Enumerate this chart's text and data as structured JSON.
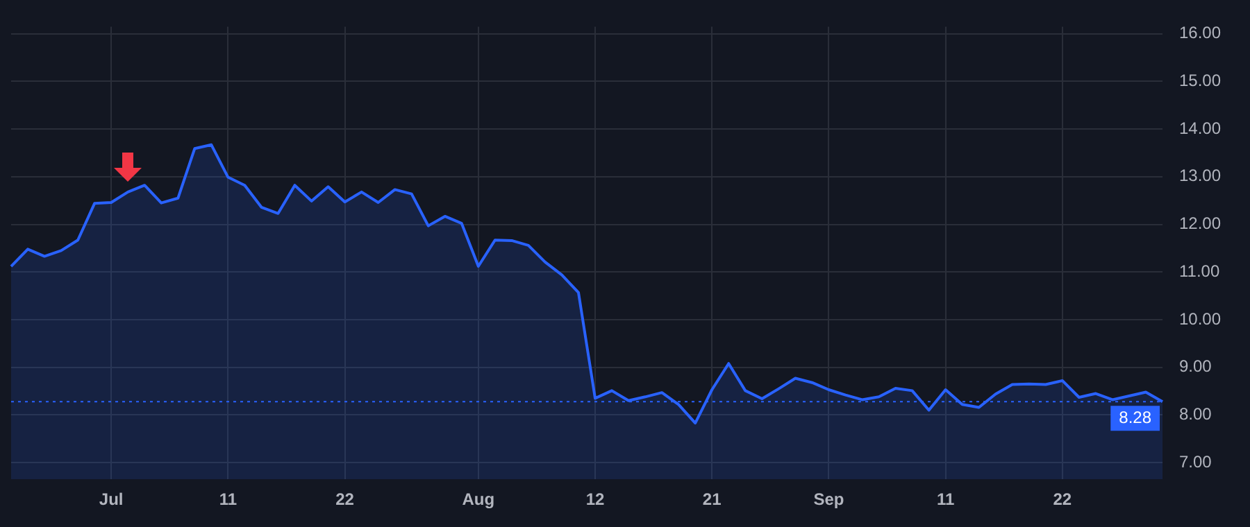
{
  "chart_data": {
    "type": "area",
    "categories": [
      null,
      null,
      null,
      null,
      null,
      null,
      "Jul",
      null,
      null,
      null,
      null,
      null,
      null,
      "11",
      null,
      null,
      null,
      null,
      null,
      null,
      "22",
      null,
      null,
      null,
      null,
      null,
      null,
      null,
      "Aug",
      null,
      null,
      null,
      null,
      null,
      null,
      "12",
      null,
      null,
      null,
      null,
      null,
      null,
      "21",
      null,
      null,
      null,
      null,
      null,
      null,
      "Sep",
      null,
      null,
      null,
      null,
      null,
      null,
      "11",
      null,
      null,
      null,
      null,
      null,
      null,
      "22",
      null,
      null,
      null,
      null,
      null,
      null
    ],
    "series": [
      {
        "color": "#2962ff",
        "values": [
          11.12,
          11.48,
          11.33,
          11.45,
          11.67,
          12.44,
          12.46,
          12.68,
          12.82,
          12.45,
          12.55,
          13.59,
          13.67,
          12.99,
          12.82,
          12.36,
          12.23,
          12.82,
          12.49,
          12.79,
          12.47,
          12.68,
          12.46,
          12.73,
          12.64,
          11.97,
          12.17,
          12.02,
          11.12,
          11.67,
          11.66,
          11.56,
          11.21,
          10.94,
          10.57,
          8.35,
          8.51,
          8.3,
          8.38,
          8.47,
          8.22,
          7.83,
          8.53,
          9.08,
          8.51,
          8.34,
          8.55,
          8.77,
          8.68,
          8.53,
          8.42,
          8.32,
          8.38,
          8.56,
          8.51,
          8.1,
          8.53,
          8.22,
          8.16,
          8.44,
          8.64,
          8.65,
          8.64,
          8.72,
          8.37,
          8.45,
          8.32,
          8.4,
          8.48,
          8.28
        ]
      }
    ],
    "ylim": [
      6.65,
      16.15
    ],
    "yticks": [
      {
        "value": 7,
        "label": "7.00"
      },
      {
        "value": 8,
        "label": "8.00"
      },
      {
        "value": 9,
        "label": "9.00"
      },
      {
        "value": 10,
        "label": "10.00"
      },
      {
        "value": 11,
        "label": "11.00"
      },
      {
        "value": 12,
        "label": "12.00"
      },
      {
        "value": 13,
        "label": "13.00"
      },
      {
        "value": 14,
        "label": "14.00"
      },
      {
        "value": 15,
        "label": "15.00"
      },
      {
        "value": 16,
        "label": "16.00"
      }
    ],
    "ref_lines": [
      {
        "axis": "y",
        "value": 8.28,
        "label": "8.28",
        "color": "#2962ff",
        "line_style": "dotted"
      }
    ],
    "grid": true,
    "legend": false
  }
}
